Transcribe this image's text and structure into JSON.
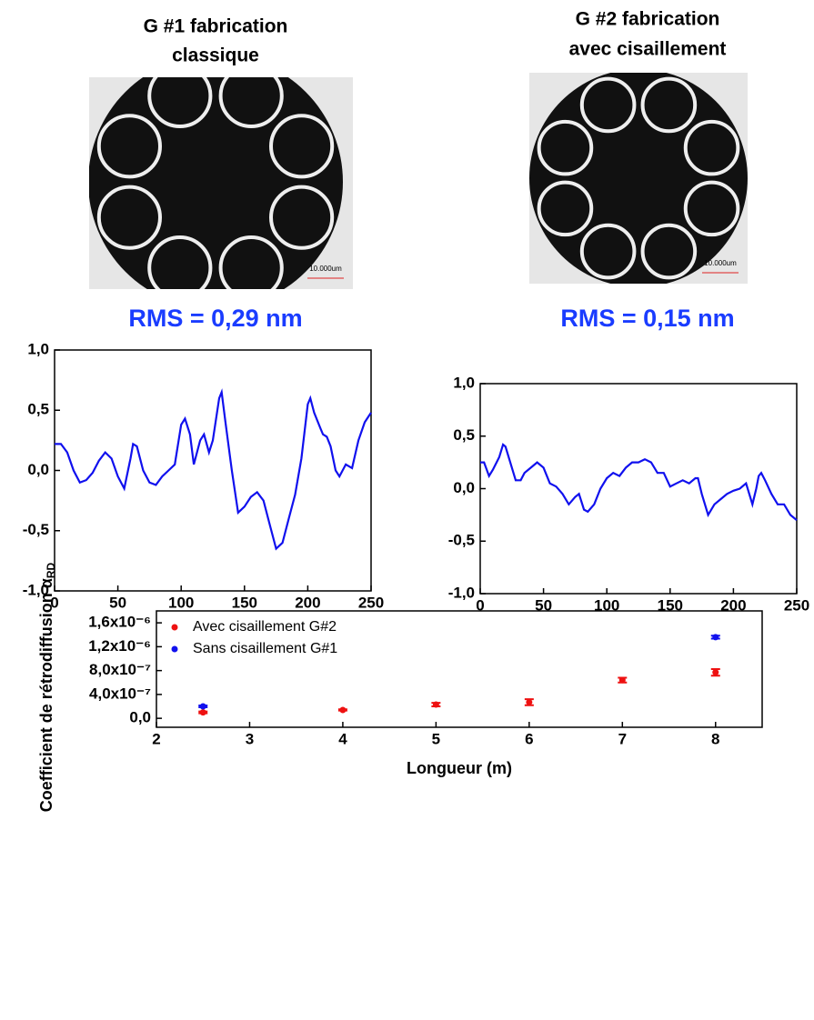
{
  "images": [
    {
      "title_lines": [
        "G #1 fabrication",
        "classique"
      ],
      "scale_label": "10.000um"
    },
    {
      "title_lines": [
        "G #2 fabrication",
        "avec cisaillement"
      ],
      "scale_label": "10.000um"
    }
  ],
  "chart_data": [
    {
      "type": "line",
      "title": "RMS = 0,29 nm",
      "x": [
        0,
        5,
        10,
        15,
        20,
        25,
        30,
        35,
        40,
        45,
        50,
        55,
        60,
        62,
        65,
        70,
        75,
        80,
        85,
        90,
        95,
        100,
        103,
        107,
        110,
        115,
        118,
        122,
        125,
        130,
        132,
        135,
        140,
        145,
        150,
        155,
        160,
        165,
        170,
        175,
        180,
        185,
        190,
        195,
        200,
        202,
        205,
        210,
        212,
        215,
        218,
        222,
        225,
        230,
        235,
        240,
        245,
        250
      ],
      "series": [
        {
          "color": "#1010ee",
          "values": [
            0.22,
            0.22,
            0.15,
            0.0,
            -0.1,
            -0.08,
            -0.02,
            0.08,
            0.15,
            0.1,
            -0.05,
            -0.15,
            0.1,
            0.22,
            0.2,
            0.0,
            -0.1,
            -0.12,
            -0.05,
            0.0,
            0.05,
            0.38,
            0.43,
            0.3,
            0.05,
            0.25,
            0.3,
            0.15,
            0.25,
            0.6,
            0.65,
            0.4,
            0.0,
            -0.35,
            -0.3,
            -0.22,
            -0.18,
            -0.25,
            -0.45,
            -0.65,
            -0.6,
            -0.4,
            -0.2,
            0.1,
            0.55,
            0.6,
            0.48,
            0.35,
            0.3,
            0.28,
            0.2,
            0.0,
            -0.05,
            0.05,
            0.02,
            0.25,
            0.4,
            0.48
          ]
        }
      ],
      "xlim": [
        0,
        250
      ],
      "xticks": [
        0,
        50,
        100,
        150,
        200,
        250
      ],
      "ylim": [
        -1,
        1
      ],
      "yticks": [
        {
          "value": 1,
          "label": "1,0"
        },
        {
          "value": 0.5,
          "label": "0,5"
        },
        {
          "value": 0,
          "label": "0,0"
        },
        {
          "value": -0.5,
          "label": "-0,5"
        },
        {
          "value": -1,
          "label": "-1,0"
        }
      ]
    },
    {
      "type": "line",
      "title": "RMS = 0,15 nm",
      "x": [
        0,
        3,
        7,
        10,
        15,
        18,
        20,
        25,
        28,
        32,
        35,
        40,
        45,
        50,
        55,
        60,
        65,
        70,
        75,
        78,
        82,
        85,
        90,
        95,
        100,
        105,
        110,
        115,
        120,
        125,
        130,
        135,
        140,
        145,
        150,
        155,
        160,
        165,
        170,
        172,
        175,
        180,
        185,
        190,
        195,
        200,
        205,
        210,
        215,
        218,
        220,
        222,
        225,
        230,
        235,
        240,
        245,
        250
      ],
      "series": [
        {
          "color": "#1010ee",
          "values": [
            0.25,
            0.25,
            0.12,
            0.18,
            0.3,
            0.42,
            0.4,
            0.2,
            0.08,
            0.08,
            0.15,
            0.2,
            0.25,
            0.2,
            0.05,
            0.02,
            -0.05,
            -0.15,
            -0.08,
            -0.05,
            -0.2,
            -0.22,
            -0.15,
            0.0,
            0.1,
            0.15,
            0.12,
            0.2,
            0.25,
            0.25,
            0.28,
            0.25,
            0.15,
            0.15,
            0.02,
            0.05,
            0.08,
            0.05,
            0.1,
            0.1,
            -0.05,
            -0.25,
            -0.15,
            -0.1,
            -0.05,
            -0.02,
            0.0,
            0.05,
            -0.15,
            0.0,
            0.12,
            0.15,
            0.08,
            -0.05,
            -0.15,
            -0.15,
            -0.25,
            -0.3
          ]
        }
      ],
      "xlim": [
        0,
        250
      ],
      "xticks": [
        0,
        50,
        100,
        150,
        200,
        250
      ],
      "ylim": [
        -1,
        1
      ],
      "yticks": [
        {
          "value": 1,
          "label": "1,0"
        },
        {
          "value": 0.5,
          "label": "0,5"
        },
        {
          "value": 0,
          "label": "0,0"
        },
        {
          "value": -0.5,
          "label": "-0,5"
        },
        {
          "value": -1,
          "label": "-1,0"
        }
      ]
    },
    {
      "type": "scatter",
      "x_label": "Longueur (m)",
      "y_label": "Coefficient de rétrodiffusion α",
      "y_label_sub": "RD",
      "legend": "upper-left",
      "series": [
        {
          "name": "Avec cisaillement G#2",
          "color": "#ee1111",
          "x": [
            2.5,
            4,
            5,
            6,
            7,
            8
          ],
          "values": [
            1e-07,
            1.4e-07,
            2.3e-07,
            2.7e-07,
            6.4e-07,
            7.7e-07
          ],
          "errors": [
            1.5e-08,
            1e-08,
            3e-08,
            5e-08,
            4e-08,
            5.5e-08
          ]
        },
        {
          "name": "Sans cisaillement G#1",
          "color": "#1111ee",
          "x": [
            2.5,
            8
          ],
          "values": [
            2e-07,
            1.36e-06
          ],
          "errors": [
            1.5e-08,
            2.5e-08
          ]
        }
      ],
      "xlim": [
        2,
        8.5
      ],
      "xticks": [
        2,
        3,
        4,
        5,
        6,
        7,
        8
      ],
      "ylim": [
        -1.5e-07,
        1.8e-06
      ],
      "yticks": [
        {
          "value": 0,
          "label": "0,0"
        },
        {
          "value": 4e-07,
          "label": "4,0x10⁻⁷"
        },
        {
          "value": 8e-07,
          "label": "8,0x10⁻⁷"
        },
        {
          "value": 1.2e-06,
          "label": "1,2x10⁻⁶"
        },
        {
          "value": 1.6e-06,
          "label": "1,6x10⁻⁶"
        }
      ]
    }
  ]
}
